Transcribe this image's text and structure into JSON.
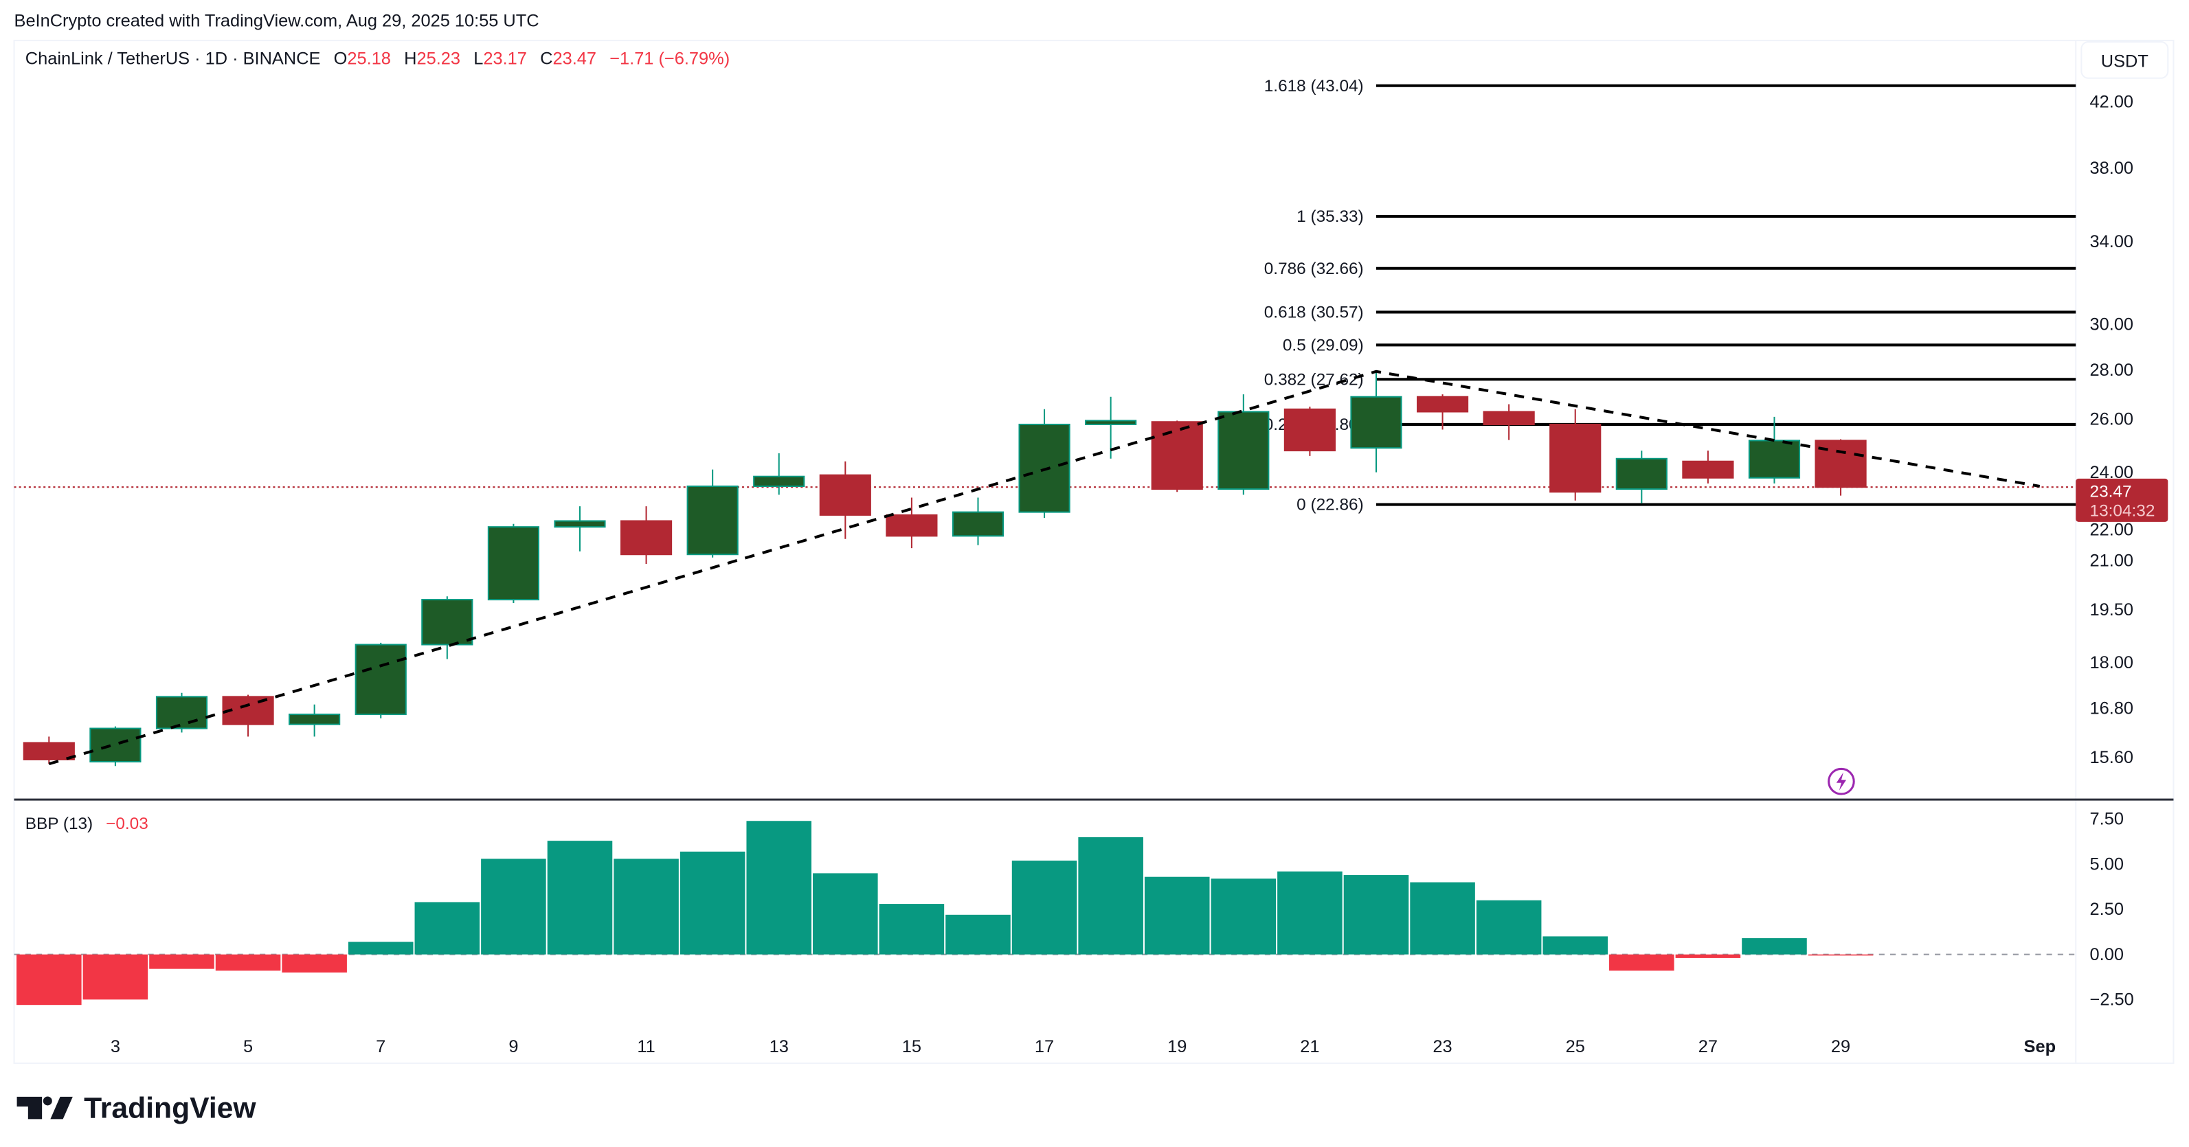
{
  "header": {
    "credit": "BeInCrypto created with TradingView.com, Aug 29, 2025 10:55 UTC",
    "symbol": "ChainLink / TetherUS · 1D · BINANCE",
    "o_label": "O",
    "o_value": "25.18",
    "h_label": "H",
    "h_value": "25.23",
    "l_label": "L",
    "l_value": "23.17",
    "c_label": "C",
    "c_value": "23.47",
    "change": "−1.71 (−6.79%)"
  },
  "currency_button": "USDT",
  "price_tag": {
    "price": "23.47",
    "countdown": "13:04:32"
  },
  "indicator": {
    "label": "BBP (13)",
    "value": "−0.03"
  },
  "footer": {
    "logo_text": "TradingView"
  },
  "colors": {
    "up": "#1e5b27",
    "up_border": "#089981",
    "down": "#b22833",
    "hist_up": "#089981",
    "hist_down": "#f23645",
    "price_tag": "#b22833",
    "alert": "#9c27b0"
  },
  "icons": {
    "alert": "lightning-icon",
    "logo": "tradingview-logo-icon"
  },
  "chart_data": [
    {
      "type": "candlestick",
      "title": "ChainLink / TetherUS · 1D · BINANCE",
      "y_scale": "log",
      "ylim": [
        15.2,
        44
      ],
      "y_ticks": [
        "42.00",
        "38.00",
        "34.00",
        "30.00",
        "28.00",
        "26.00",
        "24.00",
        "22.00",
        "21.00",
        "19.50",
        "18.00",
        "16.80",
        "15.60"
      ],
      "x_ticks": [
        "3",
        "5",
        "7",
        "9",
        "11",
        "13",
        "15",
        "17",
        "19",
        "21",
        "23",
        "25",
        "27",
        "29",
        "Sep"
      ],
      "x_tick_dates": [
        "2025-08-03",
        "2025-08-05",
        "2025-08-07",
        "2025-08-09",
        "2025-08-11",
        "2025-08-13",
        "2025-08-15",
        "2025-08-17",
        "2025-08-19",
        "2025-08-21",
        "2025-08-23",
        "2025-08-25",
        "2025-08-27",
        "2025-08-29",
        "2025-09-01"
      ],
      "x_range": [
        "2025-08-01",
        "2025-09-02"
      ],
      "candles": [
        {
          "date": "2025-08-02",
          "o": 15.95,
          "h": 16.1,
          "l": 15.45,
          "c": 15.55
        },
        {
          "date": "2025-08-03",
          "o": 15.5,
          "h": 16.35,
          "l": 15.4,
          "c": 16.3
        },
        {
          "date": "2025-08-04",
          "o": 16.3,
          "h": 17.2,
          "l": 16.2,
          "c": 17.1
        },
        {
          "date": "2025-08-05",
          "o": 17.1,
          "h": 17.15,
          "l": 16.1,
          "c": 16.4
        },
        {
          "date": "2025-08-06",
          "o": 16.4,
          "h": 16.9,
          "l": 16.1,
          "c": 16.65
        },
        {
          "date": "2025-08-07",
          "o": 16.65,
          "h": 18.55,
          "l": 16.55,
          "c": 18.5
        },
        {
          "date": "2025-08-08",
          "o": 18.5,
          "h": 19.9,
          "l": 18.1,
          "c": 19.8
        },
        {
          "date": "2025-08-09",
          "o": 19.8,
          "h": 22.2,
          "l": 19.7,
          "c": 22.1
        },
        {
          "date": "2025-08-10",
          "o": 22.1,
          "h": 22.8,
          "l": 21.3,
          "c": 22.3
        },
        {
          "date": "2025-08-11",
          "o": 22.3,
          "h": 22.8,
          "l": 20.9,
          "c": 21.2
        },
        {
          "date": "2025-08-12",
          "o": 21.2,
          "h": 24.1,
          "l": 21.1,
          "c": 23.5
        },
        {
          "date": "2025-08-13",
          "o": 23.5,
          "h": 24.7,
          "l": 23.2,
          "c": 23.85
        },
        {
          "date": "2025-08-14",
          "o": 23.9,
          "h": 24.4,
          "l": 21.7,
          "c": 22.5
        },
        {
          "date": "2025-08-15",
          "o": 22.5,
          "h": 23.1,
          "l": 21.4,
          "c": 21.8
        },
        {
          "date": "2025-08-16",
          "o": 21.8,
          "h": 23.1,
          "l": 21.5,
          "c": 22.6
        },
        {
          "date": "2025-08-17",
          "o": 22.6,
          "h": 26.4,
          "l": 22.4,
          "c": 25.8
        },
        {
          "date": "2025-08-18",
          "o": 25.8,
          "h": 26.9,
          "l": 24.5,
          "c": 25.95
        },
        {
          "date": "2025-08-19",
          "o": 25.9,
          "h": 25.95,
          "l": 23.3,
          "c": 23.4
        },
        {
          "date": "2025-08-20",
          "o": 23.4,
          "h": 27.0,
          "l": 23.2,
          "c": 26.3
        },
        {
          "date": "2025-08-21",
          "o": 26.4,
          "h": 26.5,
          "l": 24.6,
          "c": 24.8
        },
        {
          "date": "2025-08-22",
          "o": 24.9,
          "h": 27.9,
          "l": 24.0,
          "c": 26.9
        },
        {
          "date": "2025-08-23",
          "o": 26.9,
          "h": 27.0,
          "l": 25.6,
          "c": 26.3
        },
        {
          "date": "2025-08-24",
          "o": 26.3,
          "h": 26.6,
          "l": 25.2,
          "c": 25.8
        },
        {
          "date": "2025-08-25",
          "o": 25.8,
          "h": 26.4,
          "l": 23.0,
          "c": 23.3
        },
        {
          "date": "2025-08-26",
          "o": 23.4,
          "h": 24.8,
          "l": 22.9,
          "c": 24.5
        },
        {
          "date": "2025-08-27",
          "o": 24.4,
          "h": 24.8,
          "l": 23.6,
          "c": 23.8
        },
        {
          "date": "2025-08-28",
          "o": 23.8,
          "h": 26.1,
          "l": 23.6,
          "c": 25.18
        },
        {
          "date": "2025-08-29",
          "o": 25.18,
          "h": 25.23,
          "l": 23.17,
          "c": 23.47
        }
      ],
      "last_price": 23.47,
      "fib_levels": [
        {
          "label": "1.618 (43.04)",
          "price": 43.04
        },
        {
          "label": "1 (35.33)",
          "price": 35.33
        },
        {
          "label": "0.786 (32.66)",
          "price": 32.66
        },
        {
          "label": "0.618 (30.57)",
          "price": 30.57
        },
        {
          "label": "0.5 (29.09)",
          "price": 29.09
        },
        {
          "label": "0.382 (27.62)",
          "price": 27.62
        },
        {
          "label": "0.236 (25.80)",
          "price": 25.8
        },
        {
          "label": "0 (22.86)",
          "price": 22.86
        }
      ],
      "fib_range": [
        "2025-08-22",
        "2025-09-01"
      ],
      "trend_line": [
        {
          "date": "2025-08-02",
          "price": 15.45
        },
        {
          "date": "2025-08-22",
          "price": 27.95
        },
        {
          "date": "2025-09-01",
          "price": 23.5
        }
      ]
    },
    {
      "type": "bar",
      "title": "BBP (13)",
      "ylim": [
        -2.9,
        8.2
      ],
      "y_ticks": [
        "7.50",
        "5.00",
        "2.50",
        "0.00",
        "−2.50"
      ],
      "categories": [
        "2025-08-02",
        "2025-08-03",
        "2025-08-04",
        "2025-08-05",
        "2025-08-06",
        "2025-08-07",
        "2025-08-08",
        "2025-08-09",
        "2025-08-10",
        "2025-08-11",
        "2025-08-12",
        "2025-08-13",
        "2025-08-14",
        "2025-08-15",
        "2025-08-16",
        "2025-08-17",
        "2025-08-18",
        "2025-08-19",
        "2025-08-20",
        "2025-08-21",
        "2025-08-22",
        "2025-08-23",
        "2025-08-24",
        "2025-08-25",
        "2025-08-26",
        "2025-08-27",
        "2025-08-28",
        "2025-08-29"
      ],
      "values": [
        -2.8,
        -2.5,
        -0.8,
        -0.9,
        -1.0,
        0.7,
        2.9,
        5.3,
        6.3,
        5.3,
        5.7,
        7.4,
        4.5,
        2.8,
        2.2,
        5.2,
        6.5,
        4.3,
        4.2,
        4.6,
        4.4,
        4.0,
        3.0,
        1.0,
        -0.9,
        -0.2,
        0.9,
        -0.03
      ]
    }
  ]
}
